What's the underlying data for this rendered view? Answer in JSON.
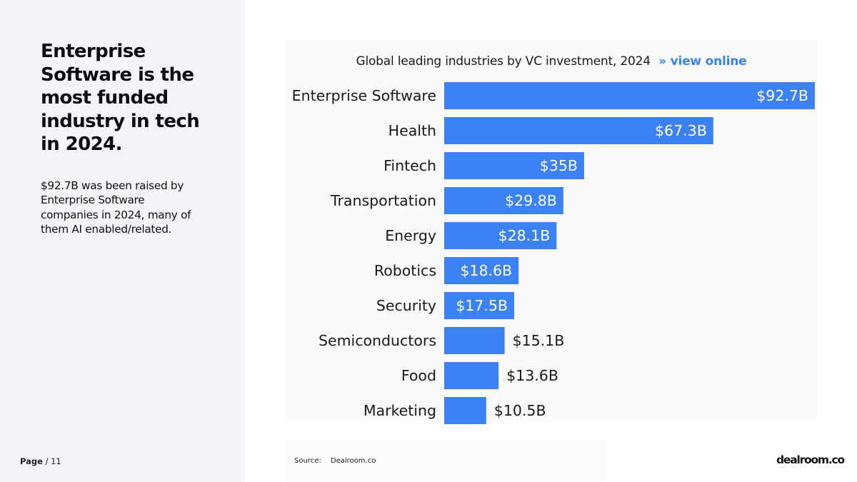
{
  "left": {
    "headline": "Enterprise Software is the most funded industry in tech in 2024.",
    "body": "$92.7B was been raised by Enterprise Software companies in 2024, many of them AI enabled/related."
  },
  "footer": {
    "page_label": "Page",
    "page_suffix": "/ 11",
    "source_label": "Source:",
    "source_value": "Dealroom.co",
    "logo": "dealroom.co"
  },
  "colors": {
    "bar": "#3d82f5",
    "accent_link": "#3b82f6"
  },
  "chart_data": {
    "type": "bar",
    "orientation": "horizontal",
    "title": "Global leading industries by VC investment, 2024",
    "title_link": "» view online",
    "categories": [
      "Enterprise Software",
      "Health",
      "Fintech",
      "Transportation",
      "Energy",
      "Robotics",
      "Security",
      "Semiconductors",
      "Food",
      "Marketing"
    ],
    "values": [
      92.7,
      67.3,
      35,
      29.8,
      28.1,
      18.6,
      17.5,
      15.1,
      13.6,
      10.5
    ],
    "value_labels": [
      "$92.7B",
      "$67.3B",
      "$35B",
      "$29.8B",
      "$28.1B",
      "$18.6B",
      "$17.5B",
      "$15.1B",
      "$13.6B",
      "$10.5B"
    ],
    "unit": "$B",
    "xlim": [
      0,
      92.7
    ],
    "xlabel": "",
    "ylabel": "",
    "grid": false
  }
}
